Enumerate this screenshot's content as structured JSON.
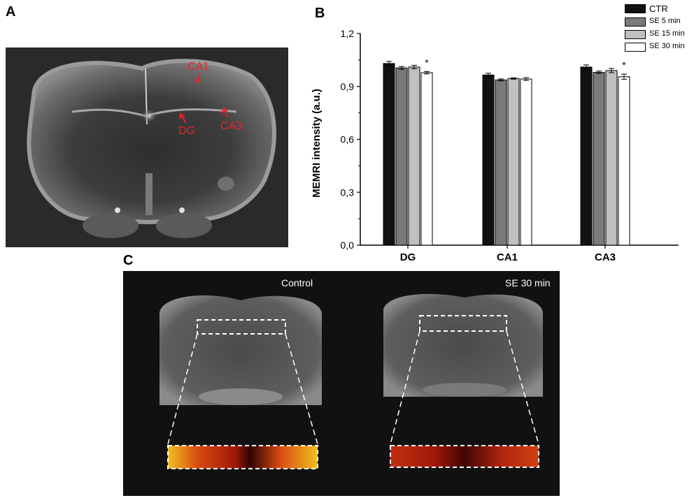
{
  "panel_labels": {
    "a": "A",
    "b": "B",
    "c": "C"
  },
  "panel_a": {
    "annotations": {
      "ca1": "CA1",
      "dg": "DG",
      "ca3": "CA3"
    },
    "annotation_color": "#e8232a"
  },
  "chart_data": {
    "type": "bar",
    "title": "",
    "xlabel": "",
    "ylabel": "MEMRI intensity (a.u.)",
    "categories": [
      "DG",
      "CA1",
      "CA3"
    ],
    "ylim": [
      0,
      1.2
    ],
    "yticks": [
      "0,0",
      "0,3",
      "0,6",
      "0,9",
      "1,2"
    ],
    "grid": false,
    "legend_position": "top-right",
    "series": [
      {
        "name": "CTR",
        "values": [
          1.03,
          0.965,
          1.01
        ],
        "errors": [
          0.012,
          0.01,
          0.012
        ],
        "color": "#111111"
      },
      {
        "name": "SE 5 min",
        "values": [
          1.005,
          0.937,
          0.98
        ],
        "errors": [
          0.008,
          0.006,
          0.007
        ],
        "color": "#7a7a7a"
      },
      {
        "name": "SE 15 min",
        "values": [
          1.01,
          0.945,
          0.99
        ],
        "errors": [
          0.01,
          0.004,
          0.012
        ],
        "color": "#c0c0c0"
      },
      {
        "name": "SE 30 min",
        "values": [
          0.978,
          0.942,
          0.955
        ],
        "errors": [
          0.007,
          0.008,
          0.015
        ],
        "color": "#ffffff"
      }
    ],
    "significance": [
      {
        "category": "DG",
        "series": "SE 30 min",
        "label": "*"
      },
      {
        "category": "CA3",
        "series": "SE 30 min",
        "label": "*"
      }
    ]
  },
  "panel_c": {
    "left_label": "Control",
    "right_label": "SE 30 min"
  }
}
